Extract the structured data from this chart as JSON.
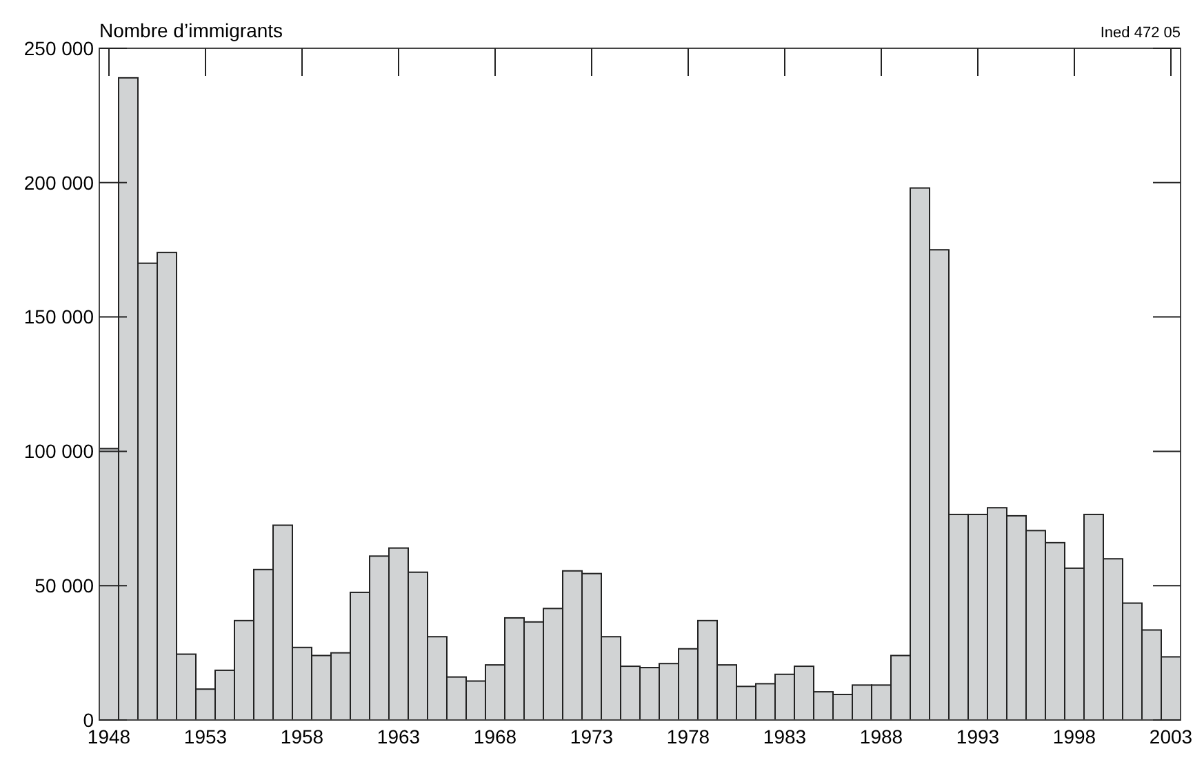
{
  "chart_data": {
    "type": "histogram",
    "ylabel": "Nombre d’immigrants",
    "annotations": [
      "Ined 472 05"
    ],
    "bins": [
      1947.5,
      1948.5,
      1949.5,
      1950.5,
      1951.5,
      1952.5,
      1953.5,
      1954.5,
      1955.5,
      1956.5,
      1957.5,
      1958.5,
      1959.5,
      1960.5,
      1961.5,
      1962.5,
      1963.5,
      1964.5,
      1965.5,
      1966.5,
      1967.5,
      1968.5,
      1969.5,
      1970.5,
      1971.5,
      1972.5,
      1973.5,
      1974.5,
      1975.5,
      1976.5,
      1977.5,
      1978.5,
      1979.5,
      1980.5,
      1981.5,
      1982.5,
      1983.5,
      1984.5,
      1985.5,
      1986.5,
      1987.5,
      1988.5,
      1989.5,
      1990.5,
      1991.5,
      1992.5,
      1993.5,
      1994.5,
      1995.5,
      1996.5,
      1997.5,
      1998.5,
      1999.5,
      2000.5,
      2001.5,
      2002.5,
      2003.5
    ],
    "values": [
      101000,
      239000,
      170000,
      174000,
      24500,
      11500,
      18500,
      37000,
      56000,
      72500,
      27000,
      24000,
      25000,
      47500,
      61000,
      64000,
      55000,
      31000,
      16000,
      14500,
      20500,
      38000,
      36500,
      41500,
      55500,
      54500,
      31000,
      20000,
      19500,
      21000,
      26500,
      37000,
      20500,
      12500,
      13500,
      17000,
      20000,
      10500,
      9500,
      13000,
      13000,
      24000,
      198000,
      175000,
      76500,
      76500,
      79000,
      76000,
      70500,
      66000,
      56500,
      76500,
      60000,
      43500,
      33500,
      23500
    ],
    "color": "#d1d3d4",
    "xlim": [
      1947.5,
      2003.5
    ],
    "xticks": [
      1948,
      1953,
      1958,
      1963,
      1968,
      1973,
      1978,
      1983,
      1988,
      1993,
      1998,
      2003
    ],
    "ylim": [
      0,
      250000
    ],
    "yticks": [
      0,
      {
        "value": 50000,
        "label": "50 000"
      },
      {
        "value": 100000,
        "label": "100 000"
      },
      {
        "value": 150000,
        "label": "150 000"
      },
      {
        "value": 200000,
        "label": "200 000"
      },
      {
        "value": 250000,
        "label": "250 000"
      }
    ],
    "grid": false
  }
}
